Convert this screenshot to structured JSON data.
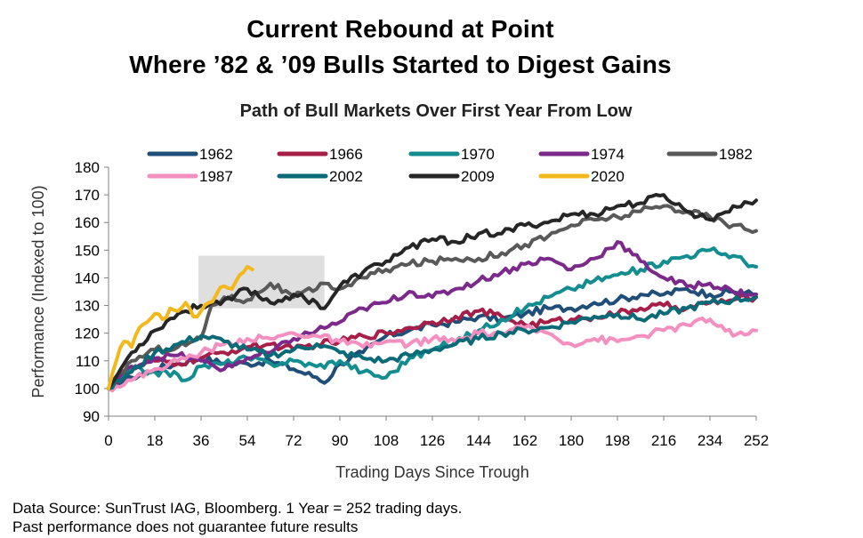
{
  "header": {
    "title_line1": "Current Rebound at Point",
    "title_line2": "Where ’82 & ’09 Bulls Started to Digest Gains",
    "subtitle": "Path of Bull Markets Over First Year From Low"
  },
  "footer": {
    "source": "Data Source: SunTrust IAG, Bloomberg. 1 Year = 252 trading days.",
    "disclaimer": "Past performance does not guarantee future results"
  },
  "chart_data": {
    "type": "line",
    "title": "Path of Bull Markets Over First Year From Low",
    "xlabel": "Trading Days Since Trough",
    "ylabel": "Performance (Indexed to 100)",
    "xlim": [
      0,
      252
    ],
    "ylim": [
      90,
      180
    ],
    "xticks": [
      0,
      18,
      36,
      54,
      72,
      90,
      108,
      126,
      144,
      162,
      180,
      198,
      216,
      234,
      252
    ],
    "yticks": [
      90,
      100,
      110,
      120,
      130,
      140,
      150,
      160,
      170,
      180
    ],
    "grid": false,
    "legend_position": "top",
    "highlight_box": {
      "x": [
        35,
        84
      ],
      "y": [
        129,
        148
      ],
      "color": "#d9d9d9"
    },
    "series": [
      {
        "name": "1962",
        "color": "#1f4e79",
        "points": [
          [
            0,
            100
          ],
          [
            9,
            104
          ],
          [
            18,
            107
          ],
          [
            27,
            109
          ],
          [
            36,
            111
          ],
          [
            45,
            109
          ],
          [
            54,
            109
          ],
          [
            63,
            110
          ],
          [
            72,
            107
          ],
          [
            81,
            104
          ],
          [
            84,
            102
          ],
          [
            90,
            109
          ],
          [
            99,
            113
          ],
          [
            108,
            119
          ],
          [
            117,
            121
          ],
          [
            126,
            123
          ],
          [
            135,
            124
          ],
          [
            144,
            126
          ],
          [
            153,
            125
          ],
          [
            162,
            127
          ],
          [
            171,
            129
          ],
          [
            180,
            129
          ],
          [
            189,
            131
          ],
          [
            198,
            132
          ],
          [
            207,
            134
          ],
          [
            216,
            134
          ],
          [
            225,
            136
          ],
          [
            234,
            134
          ],
          [
            243,
            135
          ],
          [
            252,
            134
          ]
        ]
      },
      {
        "name": "1966",
        "color": "#a51f48",
        "points": [
          [
            0,
            100
          ],
          [
            9,
            107
          ],
          [
            18,
            110
          ],
          [
            27,
            109
          ],
          [
            36,
            111
          ],
          [
            45,
            113
          ],
          [
            54,
            115
          ],
          [
            63,
            116
          ],
          [
            72,
            114
          ],
          [
            81,
            116
          ],
          [
            90,
            117
          ],
          [
            99,
            119
          ],
          [
            108,
            120
          ],
          [
            117,
            122
          ],
          [
            126,
            124
          ],
          [
            135,
            126
          ],
          [
            144,
            128
          ],
          [
            153,
            126
          ],
          [
            162,
            123
          ],
          [
            171,
            124
          ],
          [
            180,
            125
          ],
          [
            189,
            126
          ],
          [
            198,
            127
          ],
          [
            207,
            129
          ],
          [
            216,
            130
          ],
          [
            225,
            129
          ],
          [
            234,
            131
          ],
          [
            243,
            132
          ],
          [
            252,
            133
          ]
        ]
      },
      {
        "name": "1970",
        "color": "#138d90",
        "points": [
          [
            0,
            100
          ],
          [
            9,
            107
          ],
          [
            18,
            106
          ],
          [
            27,
            105
          ],
          [
            30,
            103
          ],
          [
            36,
            108
          ],
          [
            45,
            109
          ],
          [
            54,
            111
          ],
          [
            63,
            109
          ],
          [
            72,
            110
          ],
          [
            81,
            108
          ],
          [
            90,
            110
          ],
          [
            99,
            106
          ],
          [
            108,
            104
          ],
          [
            117,
            111
          ],
          [
            126,
            114
          ],
          [
            135,
            117
          ],
          [
            144,
            121
          ],
          [
            153,
            125
          ],
          [
            162,
            129
          ],
          [
            171,
            133
          ],
          [
            180,
            136
          ],
          [
            189,
            139
          ],
          [
            198,
            141
          ],
          [
            207,
            143
          ],
          [
            216,
            146
          ],
          [
            225,
            148
          ],
          [
            234,
            150
          ],
          [
            243,
            148
          ],
          [
            252,
            144
          ]
        ]
      },
      {
        "name": "1974",
        "color": "#7b2a8c",
        "points": [
          [
            0,
            100
          ],
          [
            9,
            108
          ],
          [
            18,
            111
          ],
          [
            27,
            112
          ],
          [
            36,
            110
          ],
          [
            45,
            107
          ],
          [
            54,
            111
          ],
          [
            63,
            113
          ],
          [
            72,
            118
          ],
          [
            81,
            121
          ],
          [
            90,
            124
          ],
          [
            99,
            129
          ],
          [
            108,
            131
          ],
          [
            117,
            135
          ],
          [
            126,
            133
          ],
          [
            135,
            136
          ],
          [
            144,
            139
          ],
          [
            153,
            142
          ],
          [
            162,
            145
          ],
          [
            171,
            147
          ],
          [
            180,
            143
          ],
          [
            189,
            147
          ],
          [
            198,
            153
          ],
          [
            207,
            146
          ],
          [
            216,
            140
          ],
          [
            225,
            137
          ],
          [
            234,
            138
          ],
          [
            243,
            135
          ],
          [
            252,
            134
          ]
        ]
      },
      {
        "name": "1982",
        "color": "#595959",
        "points": [
          [
            0,
            100
          ],
          [
            9,
            110
          ],
          [
            18,
            114
          ],
          [
            27,
            115
          ],
          [
            36,
            118
          ],
          [
            40,
            130
          ],
          [
            45,
            133
          ],
          [
            54,
            132
          ],
          [
            63,
            138
          ],
          [
            72,
            133
          ],
          [
            81,
            136
          ],
          [
            84,
            138
          ],
          [
            90,
            136
          ],
          [
            99,
            140
          ],
          [
            108,
            143
          ],
          [
            117,
            145
          ],
          [
            126,
            146
          ],
          [
            135,
            147
          ],
          [
            144,
            147
          ],
          [
            153,
            149
          ],
          [
            162,
            152
          ],
          [
            171,
            155
          ],
          [
            180,
            159
          ],
          [
            189,
            161
          ],
          [
            198,
            162
          ],
          [
            207,
            164
          ],
          [
            216,
            166
          ],
          [
            225,
            164
          ],
          [
            234,
            162
          ],
          [
            243,
            159
          ],
          [
            252,
            157
          ]
        ]
      },
      {
        "name": "1987",
        "color": "#f48fc0",
        "points": [
          [
            0,
            100
          ],
          [
            9,
            103
          ],
          [
            18,
            107
          ],
          [
            27,
            110
          ],
          [
            36,
            113
          ],
          [
            45,
            116
          ],
          [
            54,
            118
          ],
          [
            63,
            118
          ],
          [
            72,
            120
          ],
          [
            81,
            119
          ],
          [
            90,
            117
          ],
          [
            99,
            115
          ],
          [
            108,
            117
          ],
          [
            117,
            116
          ],
          [
            126,
            118
          ],
          [
            135,
            117
          ],
          [
            144,
            120
          ],
          [
            153,
            120
          ],
          [
            162,
            122
          ],
          [
            171,
            120
          ],
          [
            180,
            116
          ],
          [
            189,
            118
          ],
          [
            198,
            117
          ],
          [
            207,
            119
          ],
          [
            216,
            121
          ],
          [
            225,
            123
          ],
          [
            234,
            125
          ],
          [
            243,
            119
          ],
          [
            252,
            121
          ]
        ]
      },
      {
        "name": "2002",
        "color": "#0b6a78",
        "points": [
          [
            0,
            100
          ],
          [
            9,
            106
          ],
          [
            18,
            113
          ],
          [
            27,
            116
          ],
          [
            36,
            119
          ],
          [
            45,
            117
          ],
          [
            54,
            114
          ],
          [
            63,
            112
          ],
          [
            72,
            114
          ],
          [
            81,
            116
          ],
          [
            90,
            113
          ],
          [
            99,
            111
          ],
          [
            108,
            110
          ],
          [
            117,
            112
          ],
          [
            126,
            114
          ],
          [
            135,
            116
          ],
          [
            144,
            118
          ],
          [
            153,
            120
          ],
          [
            162,
            121
          ],
          [
            171,
            122
          ],
          [
            180,
            124
          ],
          [
            189,
            126
          ],
          [
            198,
            127
          ],
          [
            207,
            125
          ],
          [
            216,
            127
          ],
          [
            225,
            129
          ],
          [
            234,
            131
          ],
          [
            243,
            132
          ],
          [
            252,
            133
          ]
        ]
      },
      {
        "name": "2009",
        "color": "#262626",
        "points": [
          [
            0,
            100
          ],
          [
            9,
            113
          ],
          [
            18,
            121
          ],
          [
            27,
            127
          ],
          [
            36,
            130
          ],
          [
            45,
            132
          ],
          [
            54,
            136
          ],
          [
            63,
            131
          ],
          [
            72,
            134
          ],
          [
            81,
            131
          ],
          [
            84,
            129
          ],
          [
            90,
            137
          ],
          [
            99,
            142
          ],
          [
            108,
            146
          ],
          [
            117,
            151
          ],
          [
            126,
            154
          ],
          [
            135,
            153
          ],
          [
            144,
            156
          ],
          [
            153,
            156
          ],
          [
            162,
            159
          ],
          [
            171,
            160
          ],
          [
            180,
            163
          ],
          [
            189,
            163
          ],
          [
            198,
            166
          ],
          [
            207,
            167
          ],
          [
            216,
            170
          ],
          [
            225,
            164
          ],
          [
            234,
            161
          ],
          [
            243,
            166
          ],
          [
            252,
            168
          ]
        ]
      },
      {
        "name": "2020",
        "color": "#f3b91c",
        "points": [
          [
            0,
            100
          ],
          [
            3,
            110
          ],
          [
            6,
            117
          ],
          [
            9,
            115
          ],
          [
            12,
            122
          ],
          [
            15,
            124
          ],
          [
            18,
            127
          ],
          [
            21,
            125
          ],
          [
            24,
            129
          ],
          [
            27,
            128
          ],
          [
            30,
            131
          ],
          [
            33,
            126
          ],
          [
            36,
            128
          ],
          [
            39,
            131
          ],
          [
            42,
            134
          ],
          [
            45,
            137
          ],
          [
            48,
            136
          ],
          [
            51,
            141
          ],
          [
            54,
            144
          ],
          [
            56,
            143
          ]
        ]
      }
    ]
  }
}
